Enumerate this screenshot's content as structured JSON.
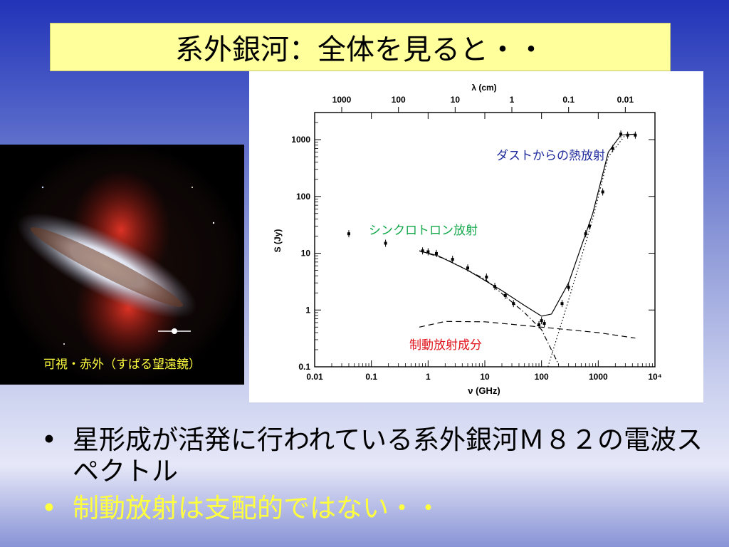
{
  "title": "系外銀河：全体を見ると・・",
  "image_caption": "可視・赤外（すばる望遠鏡）",
  "chart": {
    "top_axis_label": "λ (cm)",
    "top_ticks": [
      "1000",
      "100",
      "10",
      "1",
      "0.1",
      "0.01"
    ],
    "bottom_axis_label": "ν (GHz)",
    "bottom_ticks": [
      "0.01",
      "0.1",
      "1",
      "10",
      "100",
      "1000",
      "10⁴"
    ],
    "y_axis_label": "S (Jy)",
    "y_ticks": [
      "0.1",
      "1",
      "10",
      "100",
      "1000"
    ],
    "annotations": {
      "dust": "ダストからの熱放射",
      "synchrotron": "シンクロトロン放射",
      "free_free": "制動放射成分"
    },
    "colors": {
      "dust": "#1f2a9c",
      "synchrotron": "#13a84b",
      "free_free": "#e0141b"
    }
  },
  "chart_data": {
    "type": "scatter",
    "xlabel": "ν (GHz)",
    "ylabel": "S (Jy)",
    "x_scale": "log",
    "y_scale": "log",
    "xlim": [
      0.01,
      10000
    ],
    "ylim": [
      0.1,
      3000
    ],
    "series": [
      {
        "points": [
          [
            0.04,
            22
          ],
          [
            0.178,
            15
          ],
          [
            0.8,
            11
          ],
          [
            1.0,
            10.6
          ],
          [
            1.4,
            9.9
          ],
          [
            2.7,
            7.8
          ],
          [
            5,
            5.5
          ],
          [
            10.7,
            3.8
          ],
          [
            15,
            2.6
          ],
          [
            23,
            1.8
          ],
          [
            32,
            1.3
          ],
          [
            90,
            0.55
          ],
          [
            100,
            0.65
          ],
          [
            112,
            0.58
          ],
          [
            230,
            1.3
          ],
          [
            300,
            2.5
          ],
          [
            600,
            22
          ],
          [
            700,
            30
          ],
          [
            1200,
            120
          ],
          [
            1800,
            700
          ],
          [
            2500,
            1250
          ],
          [
            3300,
            1200
          ],
          [
            4500,
            1200
          ]
        ]
      }
    ],
    "curves": [
      {
        "style": "solid",
        "points": [
          [
            0.7,
            11
          ],
          [
            1.5,
            9
          ],
          [
            5,
            5
          ],
          [
            20,
            2.2
          ],
          [
            50,
            1.2
          ],
          [
            100,
            0.78
          ],
          [
            150,
            0.85
          ],
          [
            300,
            3
          ],
          [
            800,
            50
          ],
          [
            1500,
            600
          ],
          [
            2500,
            1200
          ],
          [
            4500,
            1250
          ]
        ]
      },
      {
        "style": "dash-dot",
        "points": [
          [
            0.7,
            11
          ],
          [
            2,
            8
          ],
          [
            10,
            3.5
          ],
          [
            50,
            0.9
          ],
          [
            100,
            0.45
          ],
          [
            200,
            0.11
          ]
        ]
      },
      {
        "style": "dotted",
        "points": [
          [
            130,
            0.1
          ],
          [
            300,
            1.5
          ],
          [
            800,
            40
          ],
          [
            1500,
            500
          ],
          [
            3000,
            1200
          ]
        ]
      },
      {
        "style": "dashed",
        "points": [
          [
            0.7,
            0.5
          ],
          [
            2,
            0.63
          ],
          [
            10,
            0.62
          ],
          [
            100,
            0.5
          ],
          [
            1000,
            0.4
          ],
          [
            4500,
            0.32
          ]
        ]
      }
    ]
  },
  "bullets": [
    {
      "text": "星形成が活発に行われている系外銀河Ｍ８２の電波スペクトル",
      "color": "#000000"
    },
    {
      "text": "制動放射は支配的ではない・・",
      "color": "#ffff40"
    }
  ]
}
